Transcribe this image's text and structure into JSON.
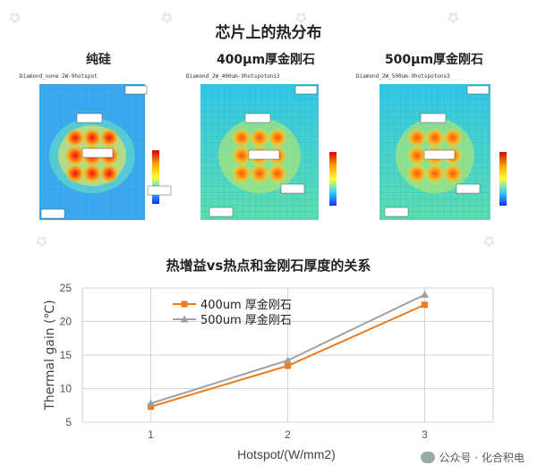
{
  "top": {
    "title": "芯片上的热分布",
    "panels": [
      {
        "subtitle": "纯硅",
        "caption": "Diamond_none 2W-9hotspot"
      },
      {
        "subtitle": "400μm厚金刚石",
        "caption": "Diamond_2W_400um-9hotspotons3"
      },
      {
        "subtitle": "500μm厚金刚石",
        "caption": "Diamond_2W_500um-9hotspotons3"
      }
    ]
  },
  "chart_data": {
    "type": "line",
    "title": "热增益vs热点和金刚石厚度的关系",
    "xlabel": "Hotspot/(W/mm2)",
    "ylabel": "Thermal gain (℃)",
    "x": [
      1,
      2,
      3
    ],
    "x_ticks": [
      "1",
      "2",
      "3"
    ],
    "y_ticks": [
      "5",
      "10",
      "15",
      "20",
      "25"
    ],
    "ylim": [
      5,
      25
    ],
    "grid": true,
    "legend": "top-left",
    "series": [
      {
        "name": "400um 厚金刚石",
        "values": [
          7.3,
          13.4,
          22.5
        ],
        "color": "#f07a1a",
        "marker": "square"
      },
      {
        "name": "500um 厚金刚石",
        "values": [
          7.8,
          14.2,
          24.0
        ],
        "color": "#a0a0a0",
        "marker": "triangle"
      }
    ]
  },
  "footer": {
    "text": "公众号 · 化合积电"
  }
}
